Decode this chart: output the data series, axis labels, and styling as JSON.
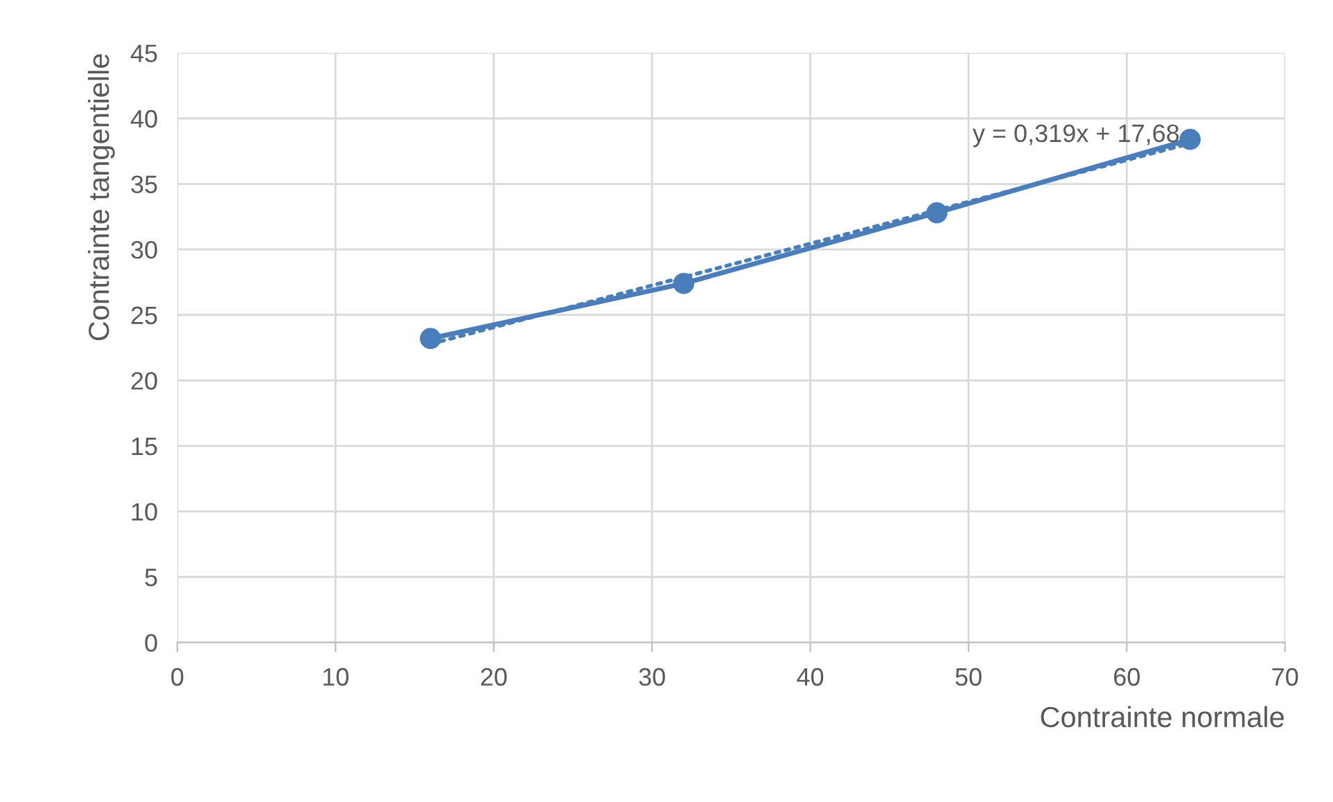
{
  "chart_data": {
    "type": "line",
    "xlabel": "Contrainte normale",
    "ylabel": "Contrainte tangentielle",
    "x": [
      16,
      32,
      48,
      64
    ],
    "series": [
      {
        "color": "#4a7ebb",
        "values": [
          23.2,
          27.4,
          32.8,
          38.4
        ],
        "marker": "circle",
        "line_style": "solid"
      },
      {
        "type": "line",
        "color": "#4a7ebb",
        "x": [
          16,
          64
        ],
        "values": [
          22.78,
          38.1
        ],
        "marker": "none",
        "line_style": "dotted"
      }
    ],
    "annotations": [
      "y = 0,319x + 17,68"
    ],
    "xlim": [
      0,
      70
    ],
    "xticks": [
      0,
      10,
      20,
      30,
      40,
      50,
      60,
      70
    ],
    "ylim": [
      0,
      45
    ],
    "yticks": [
      0,
      5,
      10,
      15,
      20,
      25,
      30,
      35,
      40,
      45
    ],
    "grid": true
  }
}
